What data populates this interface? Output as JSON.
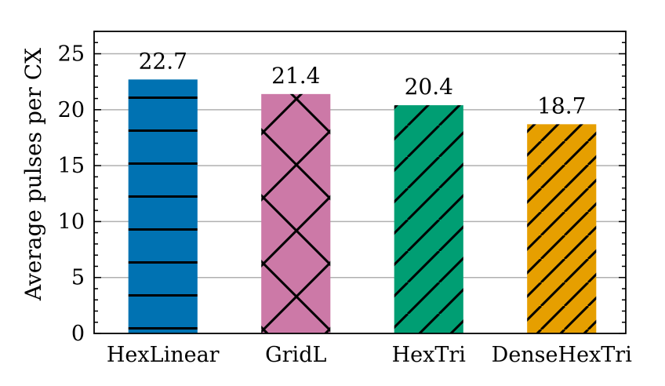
{
  "chart_data": {
    "type": "bar",
    "categories": [
      "HexLinear",
      "GridL",
      "HexTri",
      "DenseHexTri"
    ],
    "values": [
      22.7,
      21.4,
      20.4,
      18.7
    ],
    "value_labels": [
      "22.7",
      "21.4",
      "20.4",
      "18.7"
    ],
    "colors": [
      "#0072b2",
      "#cc79a7",
      "#009e73",
      "#e69f00"
    ],
    "hatches": [
      "horizontal",
      "crosshatch",
      "diagonal",
      "diagonal-dense"
    ],
    "title": "",
    "xlabel": "",
    "ylabel": "Average pulses per CX",
    "ylim": [
      0,
      27
    ],
    "yticks": [
      0,
      5,
      10,
      15,
      20,
      25
    ],
    "ytick_labels": [
      "0",
      "5",
      "10",
      "15",
      "20",
      "25"
    ],
    "grid": "horizontal"
  }
}
